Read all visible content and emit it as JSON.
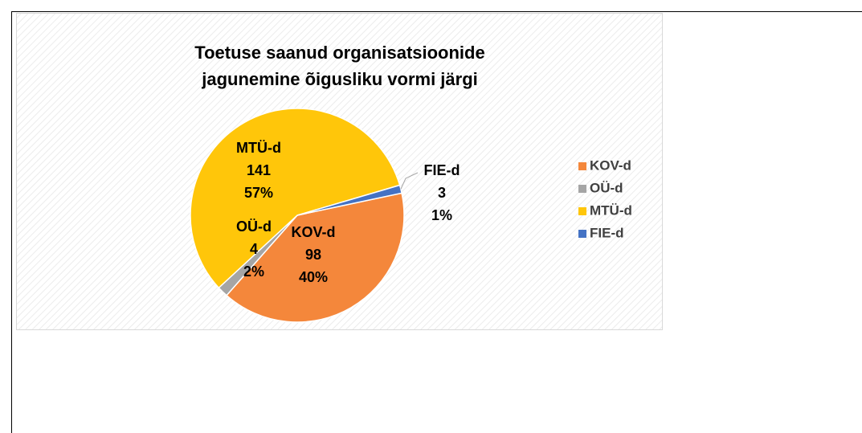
{
  "chart_data": {
    "type": "pie",
    "title": [
      "Toetuse saanud organisatsioonide",
      "jagunemine õigusliku vormi järgi"
    ],
    "categories": [
      "KOV-d",
      "OÜ-d",
      "MTÜ-d",
      "FIE-d"
    ],
    "values": [
      98,
      4,
      141,
      3
    ],
    "percent_labels": [
      "40%",
      "2%",
      "57%",
      "1%"
    ],
    "colors": [
      "#f4873b",
      "#a5a5a5",
      "#ffc60a",
      "#4472c4"
    ],
    "legend": "right"
  }
}
